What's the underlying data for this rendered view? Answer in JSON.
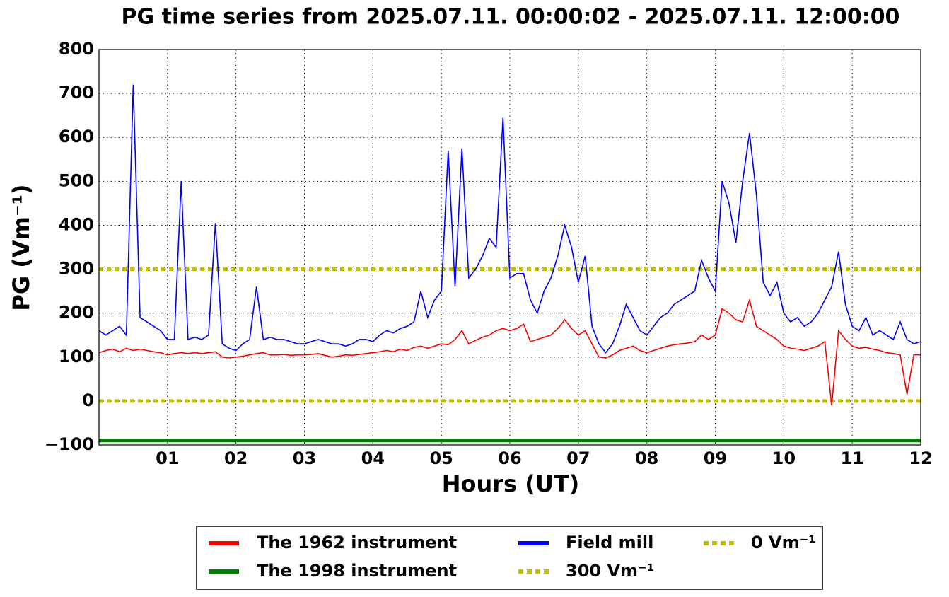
{
  "chart_data": {
    "type": "line",
    "title": "PG time series from 2025.07.11. 00:00:02 - 2025.07.11. 12:00:00",
    "x_label": "Hours (UT)",
    "y_label": "PG (Vm⁻¹)",
    "xlim": [
      0,
      12
    ],
    "xticks": [
      {
        "value": 1,
        "label": "01"
      },
      {
        "value": 2,
        "label": "02"
      },
      {
        "value": 3,
        "label": "03"
      },
      {
        "value": 4,
        "label": "04"
      },
      {
        "value": 5,
        "label": "05"
      },
      {
        "value": 6,
        "label": "06"
      },
      {
        "value": 7,
        "label": "07"
      },
      {
        "value": 8,
        "label": "08"
      },
      {
        "value": 9,
        "label": "09"
      },
      {
        "value": 10,
        "label": "10"
      },
      {
        "value": 11,
        "label": "11"
      },
      {
        "value": 12,
        "label": "12"
      }
    ],
    "ylim": [
      -100,
      800
    ],
    "yticks": [
      {
        "value": -100,
        "label": "−100"
      },
      0,
      100,
      200,
      300,
      400,
      500,
      600,
      700,
      800
    ],
    "grid": true,
    "x": [
      0,
      0.1,
      0.2,
      0.3,
      0.4,
      0.5,
      0.6,
      0.7,
      0.8,
      0.9,
      1,
      1.1,
      1.2,
      1.3,
      1.4,
      1.5,
      1.6,
      1.7,
      1.8,
      1.9,
      2,
      2.1,
      2.2,
      2.3,
      2.4,
      2.5,
      2.6,
      2.7,
      2.8,
      2.9,
      3,
      3.1,
      3.2,
      3.3,
      3.4,
      3.5,
      3.6,
      3.7,
      3.8,
      3.9,
      4,
      4.1,
      4.2,
      4.3,
      4.4,
      4.5,
      4.6,
      4.7,
      4.8,
      4.9,
      5,
      5.1,
      5.2,
      5.3,
      5.4,
      5.5,
      5.6,
      5.7,
      5.8,
      5.9,
      6,
      6.1,
      6.2,
      6.3,
      6.4,
      6.5,
      6.6,
      6.7,
      6.8,
      6.9,
      7,
      7.1,
      7.2,
      7.3,
      7.4,
      7.5,
      7.6,
      7.7,
      7.8,
      7.9,
      8,
      8.1,
      8.2,
      8.3,
      8.4,
      8.5,
      8.6,
      8.7,
      8.8,
      8.9,
      9,
      9.1,
      9.2,
      9.3,
      9.4,
      9.5,
      9.6,
      9.7,
      9.8,
      9.9,
      10,
      10.1,
      10.2,
      10.3,
      10.4,
      10.5,
      10.6,
      10.7,
      10.8,
      10.9,
      11,
      11.1,
      11.2,
      11.3,
      11.4,
      11.5,
      11.6,
      11.7,
      11.8,
      11.9,
      12
    ],
    "series": [
      {
        "name": "The 1962 instrument",
        "color": "#ff0000",
        "values": [
          110,
          115,
          118,
          112,
          120,
          115,
          118,
          115,
          112,
          110,
          105,
          108,
          110,
          108,
          110,
          108,
          110,
          112,
          100,
          98,
          100,
          102,
          105,
          108,
          110,
          105,
          105,
          106,
          104,
          105,
          105,
          106,
          108,
          104,
          100,
          102,
          105,
          104,
          106,
          108,
          110,
          112,
          115,
          112,
          118,
          115,
          122,
          125,
          120,
          125,
          130,
          128,
          140,
          160,
          130,
          138,
          145,
          150,
          160,
          165,
          160,
          165,
          175,
          135,
          140,
          145,
          150,
          165,
          185,
          165,
          150,
          160,
          130,
          100,
          98,
          105,
          115,
          120,
          125,
          115,
          110,
          115,
          120,
          125,
          128,
          130,
          132,
          135,
          150,
          140,
          150,
          210,
          200,
          185,
          180,
          230,
          170,
          160,
          150,
          140,
          125,
          120,
          118,
          115,
          120,
          125,
          135,
          -10,
          160,
          140,
          125,
          120,
          122,
          118,
          115,
          110,
          108,
          105,
          15,
          105,
          105
        ]
      },
      {
        "name": "Field mill",
        "color": "#0000ff",
        "values": [
          160,
          150,
          160,
          170,
          150,
          720,
          190,
          180,
          170,
          160,
          140,
          140,
          500,
          140,
          145,
          140,
          150,
          405,
          130,
          120,
          115,
          130,
          140,
          260,
          140,
          145,
          140,
          140,
          135,
          130,
          130,
          135,
          140,
          135,
          130,
          130,
          125,
          130,
          140,
          140,
          135,
          150,
          160,
          155,
          165,
          170,
          180,
          250,
          190,
          230,
          250,
          570,
          260,
          575,
          280,
          300,
          330,
          370,
          350,
          645,
          280,
          290,
          290,
          230,
          200,
          250,
          280,
          330,
          400,
          350,
          270,
          330,
          170,
          130,
          110,
          130,
          170,
          220,
          190,
          160,
          150,
          170,
          190,
          200,
          220,
          230,
          240,
          250,
          320,
          280,
          250,
          500,
          450,
          360,
          500,
          610,
          470,
          270,
          240,
          270,
          200,
          180,
          190,
          170,
          180,
          200,
          230,
          260,
          340,
          220,
          170,
          160,
          190,
          150,
          160,
          150,
          140,
          180,
          140,
          130,
          135
        ]
      }
    ],
    "hlines": [
      {
        "name": "The 1998 instrument",
        "color": "#008000",
        "value": -90,
        "style": "solid"
      },
      {
        "name": "300 Vm⁻¹",
        "color": "#bfbf00",
        "value": 300,
        "style": "dotted"
      },
      {
        "name": "0 Vm⁻¹",
        "color": "#bfbf00",
        "value": 0,
        "style": "dotted"
      }
    ]
  }
}
